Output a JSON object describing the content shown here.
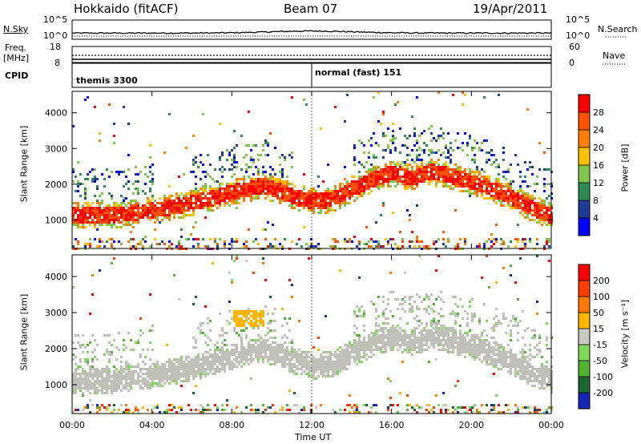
{
  "header": {
    "radar": "Hokkaido (fitACF)",
    "beam": "Beam 07",
    "date": "19/Apr/2011"
  },
  "top_panel": {
    "nsky_label": "N.Sky",
    "nsearch_label": "N.Search",
    "left_ticks": [
      "10^5",
      "10^0"
    ],
    "right_ticks": [
      "10^5",
      "10^0"
    ],
    "freq_label_line1": "Freq.",
    "freq_label_line2": "[MHz]",
    "freq_ticks": [
      "18",
      "8"
    ],
    "nave_label": "Nave",
    "nave_ticks": [
      "60",
      "0"
    ],
    "cpid_label": "CPID",
    "cpid_entries": [
      {
        "text": "themis 3300",
        "start_hour": 0
      },
      {
        "text": "normal (fast) 151",
        "start_hour": 12
      }
    ]
  },
  "colors": {
    "power_scale": [
      "#0000ff",
      "#1c3c96",
      "#2e8b57",
      "#7fc64a",
      "#ffc000",
      "#ff8000",
      "#ff5000",
      "#ff0000"
    ],
    "velocity_scale": [
      "#1428b4",
      "#1e6432",
      "#50b432",
      "#7ed85a",
      "#c8c8c0",
      "#ffb400",
      "#ff7800",
      "#ff3c00",
      "#ff0000"
    ],
    "ground_scatter": "#c0c0b8"
  },
  "chart_data": [
    {
      "type": "heatmap",
      "title": "",
      "xlabel": "Time UT",
      "ylabel": "Slant Range [km]",
      "xlim": [
        0,
        24
      ],
      "ylim": [
        200,
        4600
      ],
      "x_ticks": [
        "00:00",
        "04:00",
        "08:00",
        "12:00",
        "16:00",
        "20:00",
        "00:00"
      ],
      "y_ticks": [
        "1000",
        "2000",
        "3000",
        "4000"
      ],
      "colorbar": {
        "label": "Power [dB]",
        "ticks": [
          "4",
          "8",
          "12",
          "16",
          "20",
          "24",
          "28"
        ],
        "range": [
          0,
          32
        ]
      },
      "main_band_center_km": [
        [
          0,
          1150
        ],
        [
          2,
          1150
        ],
        [
          4,
          1300
        ],
        [
          6,
          1500
        ],
        [
          8,
          1800
        ],
        [
          9.5,
          2000
        ],
        [
          11,
          1700
        ],
        [
          12,
          1550
        ],
        [
          13,
          1600
        ],
        [
          14,
          1900
        ],
        [
          15,
          2150
        ],
        [
          16,
          2350
        ],
        [
          17,
          2200
        ],
        [
          18,
          2400
        ],
        [
          19,
          2250
        ],
        [
          20,
          2100
        ],
        [
          21,
          1900
        ],
        [
          22,
          1650
        ],
        [
          23,
          1350
        ],
        [
          24,
          1150
        ]
      ],
      "band_width_km": 400
    },
    {
      "type": "heatmap",
      "title": "",
      "xlabel": "Time UT",
      "ylabel": "Slant Range [km]",
      "xlim": [
        0,
        24
      ],
      "ylim": [
        200,
        4600
      ],
      "x_ticks": [
        "00:00",
        "04:00",
        "08:00",
        "12:00",
        "16:00",
        "20:00",
        "00:00"
      ],
      "y_ticks": [
        "1000",
        "2000",
        "3000",
        "4000"
      ],
      "colorbar": {
        "label": "Velocity [m s⁻¹]",
        "ticks": [
          "200",
          "100",
          "50",
          "15",
          "-15",
          "-50",
          "-100",
          "-200"
        ],
        "range": [
          -250,
          250
        ]
      },
      "ground_scatter": "grey",
      "main_band_center_km": [
        [
          0,
          1150
        ],
        [
          4,
          1300
        ],
        [
          8,
          1800
        ],
        [
          12,
          1550
        ],
        [
          16,
          2350
        ],
        [
          18,
          2400
        ],
        [
          20,
          2100
        ],
        [
          22,
          1650
        ],
        [
          24,
          1150
        ]
      ]
    }
  ]
}
